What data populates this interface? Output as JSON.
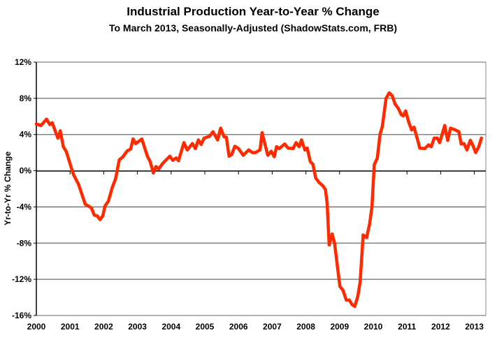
{
  "chart_data": {
    "type": "line",
    "title": "Industrial Production Year-to-Year % Change",
    "subtitle": "To March 2013, Seasonally-Adjusted (ShadowStats.com, FRB)",
    "xlabel": "",
    "ylabel": "Yr-to-Yr % Change",
    "xlim": [
      2000,
      2013.37
    ],
    "ylim": [
      -16,
      12
    ],
    "grid": true,
    "legend": "none",
    "x_ticks": [
      2000,
      2001,
      2002,
      2003,
      2004,
      2005,
      2006,
      2007,
      2008,
      2009,
      2010,
      2011,
      2012,
      2013
    ],
    "x_tick_labels": [
      "2000",
      "2001",
      "2002",
      "2003",
      "2004",
      "2005",
      "2006",
      "2007",
      "2008",
      "2009",
      "2010",
      "2011",
      "2012",
      "2013"
    ],
    "y_ticks": [
      12,
      8,
      4,
      0,
      -4,
      -8,
      -12,
      -16
    ],
    "y_tick_labels": [
      "12%",
      "8%",
      "4%",
      "0%",
      "-4%",
      "-8%",
      "-12%",
      "-16%"
    ],
    "series": [
      {
        "name": "Industrial Production Yr-to-Yr % Change",
        "color": "#ff2a00",
        "x": [
          2000.0,
          2000.14,
          2000.3,
          2000.4,
          2000.47,
          2000.64,
          2000.71,
          2000.8,
          2000.89,
          2000.99,
          2001.1,
          2001.25,
          2001.45,
          2001.63,
          2001.72,
          2001.81,
          2001.89,
          2001.97,
          2002.04,
          2002.14,
          2002.25,
          2002.35,
          2002.46,
          2002.56,
          2002.7,
          2002.8,
          2002.87,
          2002.95,
          2003.13,
          2003.3,
          2003.38,
          2003.47,
          2003.55,
          2003.63,
          2003.76,
          2003.96,
          2004.05,
          2004.15,
          2004.22,
          2004.38,
          2004.48,
          2004.63,
          2004.72,
          2004.81,
          2004.89,
          2004.98,
          2005.14,
          2005.24,
          2005.38,
          2005.47,
          2005.57,
          2005.64,
          2005.72,
          2005.8,
          2005.89,
          2006.0,
          2006.14,
          2006.3,
          2006.41,
          2006.5,
          2006.64,
          2006.7,
          2006.87,
          2006.97,
          2007.06,
          2007.13,
          2007.21,
          2007.37,
          2007.47,
          2007.62,
          2007.71,
          2007.8,
          2007.87,
          2007.97,
          2008.04,
          2008.13,
          2008.21,
          2008.29,
          2008.39,
          2008.51,
          2008.58,
          2008.63,
          2008.69,
          2008.78,
          2008.85,
          2008.94,
          2009.01,
          2009.1,
          2009.2,
          2009.29,
          2009.37,
          2009.45,
          2009.54,
          2009.61,
          2009.7,
          2009.8,
          2009.89,
          2009.96,
          2010.03,
          2010.12,
          2010.2,
          2010.27,
          2010.38,
          2010.47,
          2010.56,
          2010.65,
          2010.74,
          2010.83,
          2010.89,
          2010.96,
          2011.05,
          2011.14,
          2011.21,
          2011.29,
          2011.38,
          2011.53,
          2011.64,
          2011.72,
          2011.81,
          2011.9,
          2011.97,
          2012.12,
          2012.21,
          2012.29,
          2012.41,
          2012.54,
          2012.61,
          2012.69,
          2012.78,
          2012.88,
          2012.95,
          2013.04,
          2013.13,
          2013.21
        ],
        "y": [
          5.16,
          5.0,
          5.7,
          5.1,
          5.3,
          3.6,
          4.4,
          2.65,
          2.1,
          0.9,
          -0.4,
          -1.5,
          -3.7,
          -4.1,
          -4.9,
          -5.0,
          -5.4,
          -5.0,
          -3.9,
          -3.35,
          -1.9,
          -0.9,
          1.2,
          1.5,
          2.2,
          2.4,
          3.5,
          3.0,
          3.5,
          1.55,
          1.0,
          -0.25,
          0.45,
          0.2,
          0.85,
          1.6,
          1.15,
          1.4,
          1.1,
          3.1,
          2.3,
          3.0,
          2.45,
          3.4,
          2.9,
          3.6,
          3.8,
          4.3,
          3.4,
          4.7,
          3.75,
          3.7,
          1.6,
          1.8,
          2.7,
          2.45,
          1.7,
          2.3,
          2.0,
          2.0,
          2.3,
          4.2,
          1.7,
          2.15,
          1.55,
          2.65,
          2.45,
          2.95,
          2.5,
          2.45,
          3.1,
          2.65,
          3.4,
          2.3,
          2.5,
          1.0,
          0.7,
          -0.8,
          -1.3,
          -1.7,
          -2.1,
          -3.6,
          -8.2,
          -7.0,
          -8.0,
          -10.7,
          -12.8,
          -13.2,
          -14.3,
          -14.3,
          -14.8,
          -15.0,
          -13.9,
          -12.3,
          -7.1,
          -7.4,
          -5.9,
          -4.0,
          0.65,
          1.4,
          4.0,
          4.9,
          8.0,
          8.6,
          8.3,
          7.35,
          6.9,
          6.2,
          6.05,
          6.6,
          5.4,
          4.5,
          4.8,
          3.75,
          2.5,
          2.45,
          2.85,
          2.65,
          3.6,
          3.6,
          3.1,
          5.0,
          3.35,
          4.7,
          4.55,
          4.3,
          2.95,
          3.0,
          2.3,
          3.35,
          2.85,
          2.0,
          2.65,
          3.6
        ]
      }
    ]
  }
}
